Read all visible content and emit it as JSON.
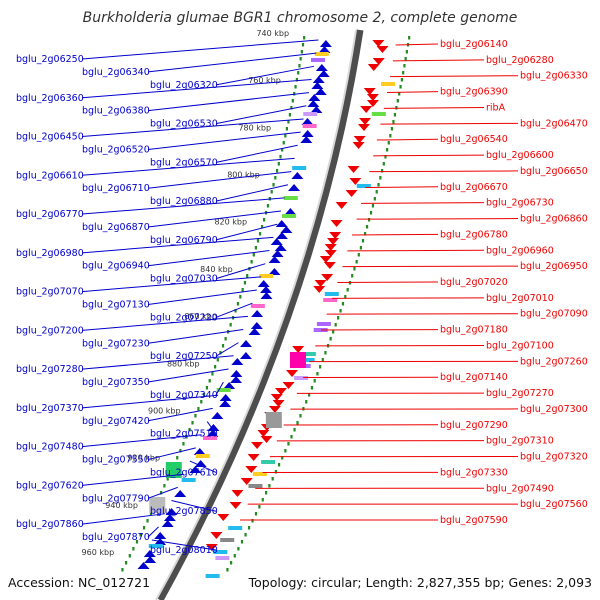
{
  "title": "Burkholderia glumae BGR1 chromosome 2, complete genome",
  "accession": "Accession: NC_012721",
  "summary": "Topology: circular; Length: 2,827,355 bp; Genes: 2,093",
  "colors": {
    "forward": "#0000cc",
    "reverse": "#ee0000",
    "ring": "#888888",
    "tick": "#228b22",
    "feature": "#ff00aa"
  },
  "scale_labels": [
    "740 kbp",
    "760 kbp",
    "780 kbp",
    "800 kbp",
    "820 kbp",
    "840 kbp",
    "860 kbp",
    "880 kbp",
    "900 kbp",
    "920 kbp",
    "940 kbp",
    "960 kbp"
  ],
  "left_genes": [
    "bglu_2g06250",
    "bglu_2g06340",
    "bglu_2g06320",
    "bglu_2g06360",
    "bglu_2g06380",
    "bglu_2g06530",
    "bglu_2g06450",
    "bglu_2g06520",
    "bglu_2g06570",
    "bglu_2g06610",
    "bglu_2g06710",
    "bglu_2g06880",
    "bglu_2g06770",
    "bglu_2g06870",
    "bglu_2g06790",
    "bglu_2g06980",
    "bglu_2g06940",
    "bglu_2g07030",
    "bglu_2g07070",
    "bglu_2g07130",
    "bglu_2g07220",
    "bglu_2g07200",
    "bglu_2g07230",
    "bglu_2g07250",
    "bglu_2g07280",
    "bglu_2g07350",
    "bglu_2g07340",
    "bglu_2g07370",
    "bglu_2g07420",
    "bglu_2g07510",
    "bglu_2g07480",
    "bglu_2g07550",
    "bglu_2g07610",
    "bglu_2g07620",
    "bglu_2g07790",
    "bglu_2g07850",
    "bglu_2g07860",
    "bglu_2g07870",
    "bglu_2g08010"
  ],
  "right_genes": [
    "bglu_2g06140",
    "bglu_2g06280",
    "bglu_2g06330",
    "bglu_2g06390",
    "ribA",
    "bglu_2g06470",
    "bglu_2g06540",
    "bglu_2g06600",
    "bglu_2g06650",
    "bglu_2g06670",
    "bglu_2g06730",
    "bglu_2g06860",
    "bglu_2g06780",
    "bglu_2g06960",
    "bglu_2g06950",
    "bglu_2g07020",
    "bglu_2g07010",
    "bglu_2g07090",
    "bglu_2g07180",
    "bglu_2g07100",
    "bglu_2g07260",
    "bglu_2g07140",
    "bglu_2g07270",
    "bglu_2g07300",
    "bglu_2g07290",
    "bglu_2g07310",
    "bglu_2g07320",
    "bglu_2g07330",
    "bglu_2g07490",
    "bglu_2g07560",
    "bglu_2g07590"
  ]
}
